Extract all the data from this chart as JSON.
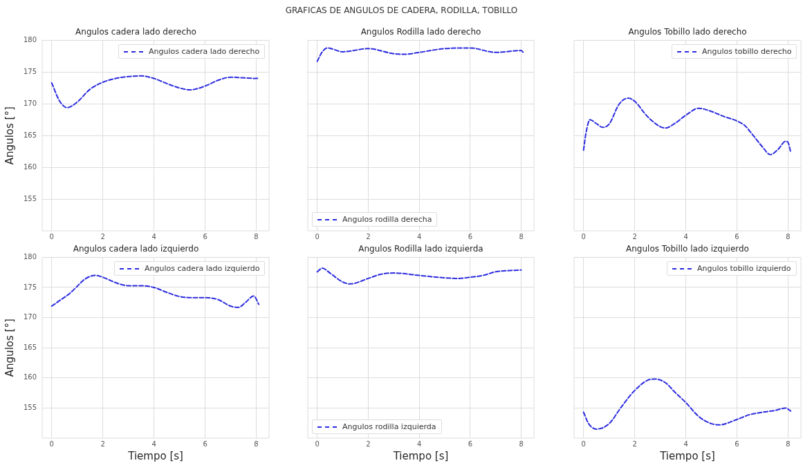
{
  "chart_data": [
    {
      "type": "line",
      "title": "Angulos cadera lado derecho",
      "ylabel": "Angulos [°]",
      "annotations": [
        "GRAFICAS DE ANGULOS DE CADERA, RODILLA, TOBILLO"
      ],
      "xlim": [
        -0.37,
        8.5
      ],
      "xticks": [
        0,
        2,
        4,
        6,
        8
      ],
      "ylim": [
        150,
        180
      ],
      "yticks": [
        155,
        160,
        165,
        170,
        175,
        180
      ],
      "grid": true,
      "legend": "top right",
      "line_style": "dashed",
      "marker": "none",
      "series": [
        {
          "name": "Angulos cadera lado derecho",
          "color": "#2a2ae0",
          "x": [
            0,
            0.3,
            0.6,
            1,
            1.5,
            2,
            2.5,
            3,
            3.5,
            4,
            4.5,
            5,
            5.4,
            6,
            6.5,
            7,
            7.5,
            8,
            8.1
          ],
          "values": [
            173.3,
            170.5,
            169.4,
            170.3,
            172.3,
            173.4,
            174.0,
            174.3,
            174.4,
            174.0,
            173.2,
            172.5,
            172.2,
            172.8,
            173.7,
            174.2,
            174.1,
            174.0,
            174.1
          ]
        }
      ]
    },
    {
      "type": "line",
      "title": "Angulos Rodilla lado derecho",
      "xlim": [
        -0.37,
        8.5
      ],
      "xticks": [
        0,
        2,
        4,
        6,
        8
      ],
      "ylim": [
        150,
        180
      ],
      "yticks": [
        155,
        160,
        165,
        170,
        175,
        180
      ],
      "grid": true,
      "legend": "bottom left",
      "line_style": "dashed",
      "marker": "none",
      "tick_labels": "x",
      "series": [
        {
          "name": "Angulos rodilla derecha",
          "color": "#2a2ae0",
          "x": [
            0,
            0.2,
            0.4,
            1,
            2,
            3,
            3.4,
            4,
            5,
            6,
            7,
            8,
            8.1
          ],
          "values": [
            176.7,
            178.2,
            178.8,
            178.2,
            178.7,
            177.9,
            177.8,
            178.1,
            178.7,
            178.8,
            178.1,
            178.4,
            178.0
          ]
        }
      ]
    },
    {
      "type": "line",
      "title": "Angulos Tobillo lado derecho",
      "xlim": [
        -0.37,
        8.5
      ],
      "xticks": [
        0,
        2,
        4,
        6,
        8
      ],
      "ylim": [
        150,
        180
      ],
      "yticks": [
        155,
        160,
        165,
        170,
        175,
        180
      ],
      "grid": true,
      "legend": "top right",
      "line_style": "dashed",
      "marker": "none",
      "tick_labels": "x",
      "series": [
        {
          "name": "Angulos tobillo derecho",
          "color": "#2a2ae0",
          "x": [
            0,
            0.1,
            0.25,
            0.5,
            0.75,
            1,
            1.4,
            1.75,
            2,
            2.5,
            3,
            3.2,
            3.6,
            4,
            4.5,
            5,
            5.5,
            6,
            6.3,
            6.6,
            7,
            7.3,
            7.6,
            7.9,
            8.0,
            8.1
          ],
          "values": [
            162.7,
            165.5,
            167.5,
            166.9,
            166.3,
            166.8,
            170.0,
            170.9,
            170.4,
            168.0,
            166.4,
            166.2,
            167.0,
            168.2,
            169.3,
            168.8,
            168.0,
            167.3,
            166.6,
            165.2,
            163.2,
            162.0,
            162.8,
            164.1,
            163.9,
            162.4
          ]
        }
      ]
    },
    {
      "type": "line",
      "title": "Angulos cadera lado izquierdo",
      "xlabel": "Tiempo [s]",
      "ylabel": "Angulos [°]",
      "xlim": [
        -0.37,
        8.5
      ],
      "xticks": [
        0,
        2,
        4,
        6,
        8
      ],
      "ylim": [
        150,
        180
      ],
      "yticks": [
        155,
        160,
        165,
        170,
        175,
        180
      ],
      "grid": true,
      "legend": "top right",
      "line_style": "dashed",
      "marker": "none",
      "series": [
        {
          "name": "Angulos cadera lado izquierdo",
          "color": "#2a2ae0",
          "x": [
            0,
            0.3,
            0.7,
            1,
            1.3,
            1.7,
            2,
            2.5,
            3,
            3.5,
            4,
            4.5,
            5,
            5.5,
            6,
            6.5,
            7,
            7.3,
            7.6,
            7.9,
            8.1
          ],
          "values": [
            171.9,
            172.8,
            174.0,
            175.2,
            176.4,
            177.0,
            176.7,
            175.8,
            175.3,
            175.3,
            175.0,
            174.2,
            173.5,
            173.3,
            173.3,
            173.0,
            171.9,
            171.7,
            172.6,
            173.6,
            172.2
          ]
        }
      ]
    },
    {
      "type": "line",
      "title": "Angulos Rodilla lado izquierda",
      "xlabel": "Tiempo [s]",
      "xlim": [
        -0.37,
        8.5
      ],
      "xticks": [
        0,
        2,
        4,
        6,
        8
      ],
      "ylim": [
        150,
        180
      ],
      "yticks": [
        155,
        160,
        165,
        170,
        175,
        180
      ],
      "grid": true,
      "legend": "bottom left",
      "line_style": "dashed",
      "marker": "none",
      "tick_labels": "x",
      "series": [
        {
          "name": "Angulos rodilla izquierda",
          "color": "#2a2ae0",
          "x": [
            0,
            0.2,
            0.5,
            1,
            1.3,
            2,
            2.5,
            3,
            4,
            5,
            5.5,
            6,
            6.5,
            7,
            7.5,
            8
          ],
          "values": [
            177.6,
            178.2,
            177.4,
            175.9,
            175.6,
            176.5,
            177.2,
            177.4,
            177.0,
            176.6,
            176.5,
            176.7,
            177.0,
            177.6,
            177.8,
            177.9
          ]
        }
      ]
    },
    {
      "type": "line",
      "title": "Angulos Tobillo lado izquierdo",
      "xlabel": "Tiempo [s]",
      "xlim": [
        -0.37,
        8.5
      ],
      "xticks": [
        0,
        2,
        4,
        6,
        8
      ],
      "ylim": [
        150,
        180
      ],
      "yticks": [
        155,
        160,
        165,
        170,
        175,
        180
      ],
      "grid": true,
      "legend": "top right",
      "line_style": "dashed",
      "marker": "none",
      "tick_labels": "x",
      "series": [
        {
          "name": "Angulos tobillo izquierdo",
          "color": "#2a2ae0",
          "x": [
            0,
            0.2,
            0.5,
            1,
            1.5,
            2,
            2.5,
            2.8,
            3.2,
            3.6,
            4,
            4.5,
            5,
            5.3,
            6,
            6.5,
            7,
            7.5,
            7.9,
            8.1
          ],
          "values": [
            154.3,
            152.4,
            151.5,
            152.4,
            155.3,
            157.9,
            159.6,
            159.8,
            159.2,
            157.5,
            155.9,
            153.6,
            152.4,
            152.2,
            153.1,
            153.9,
            154.3,
            154.6,
            155.0,
            154.5
          ]
        }
      ]
    }
  ]
}
